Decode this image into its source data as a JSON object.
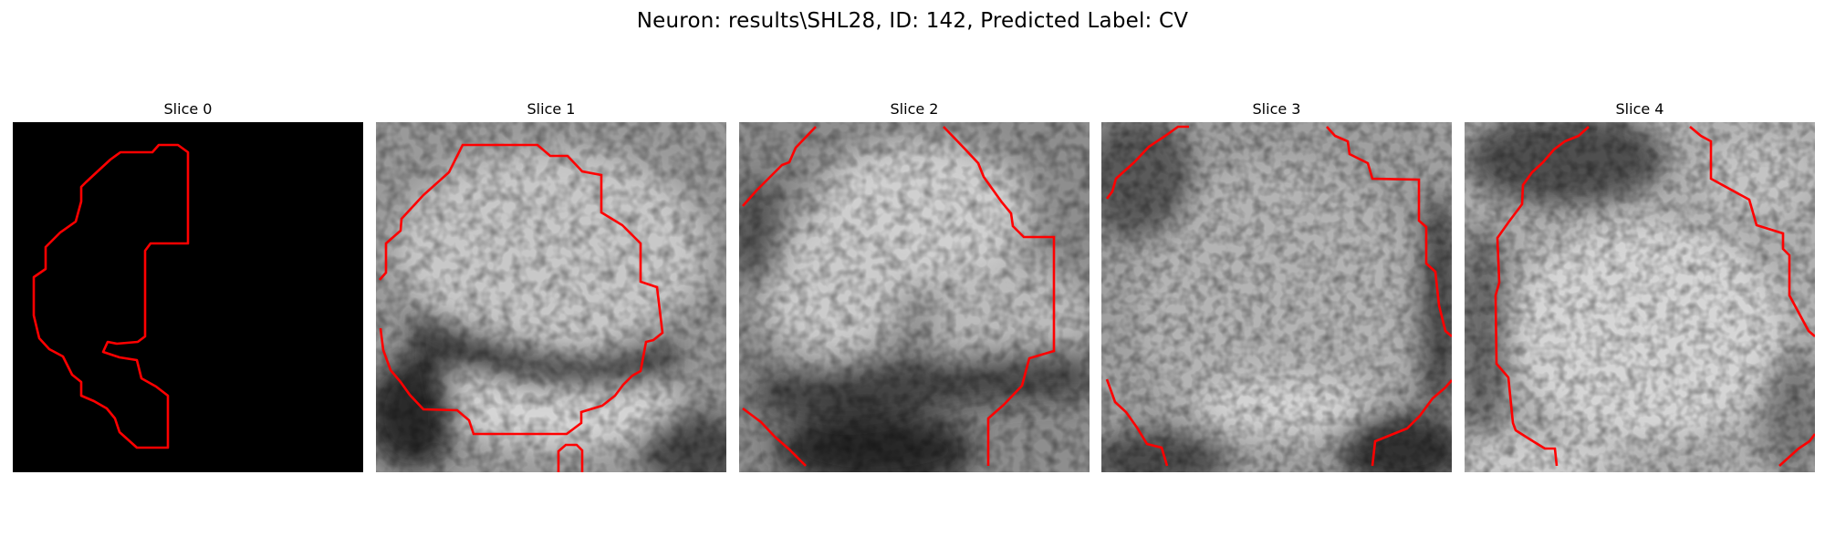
{
  "figure": {
    "title": "Neuron: results\\SHL28, ID: 142, Predicted Label: CV"
  },
  "panels": [
    {
      "title": "Slice 0"
    },
    {
      "title": "Slice 1"
    },
    {
      "title": "Slice 2"
    },
    {
      "title": "Slice 3"
    },
    {
      "title": "Slice 4"
    }
  ],
  "colors": {
    "contour": "#ff0000",
    "background": "#ffffff",
    "mask_background": "#000000"
  }
}
